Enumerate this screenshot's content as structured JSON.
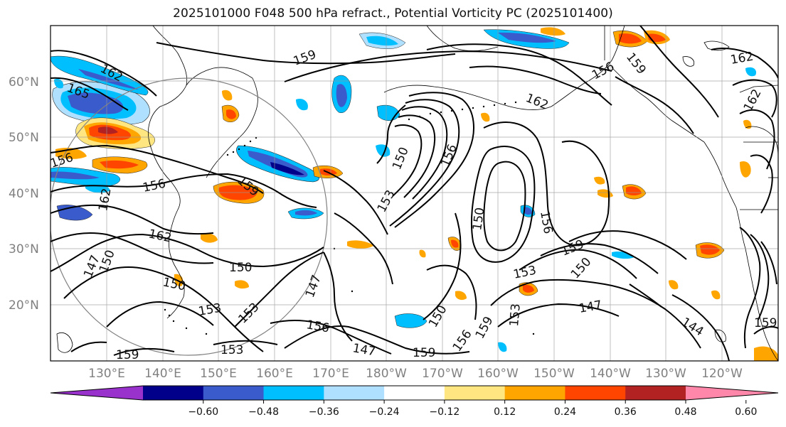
{
  "title": "2025101000 F048 500 hPa refract., Potential Vorticity PC (2025101400)",
  "lat_labels": [
    "60°N",
    "50°N",
    "40°N",
    "30°N",
    "20°N"
  ],
  "lon_labels": [
    "130°E",
    "140°E",
    "150°E",
    "160°E",
    "170°E",
    "180°W",
    "170°W",
    "160°W",
    "150°W",
    "140°W",
    "130°W",
    "120°W"
  ],
  "colorbar": {
    "ticks": [
      "−0.60",
      "−0.48",
      "−0.36",
      "−0.24",
      "−0.12",
      "0.12",
      "0.24",
      "0.36",
      "0.48",
      "0.60"
    ],
    "colors": [
      "#9932cc",
      "#00008b",
      "#3a5bcc",
      "#00bfff",
      "#b0e0ff",
      "#ffffff",
      "#ffe680",
      "#ffa500",
      "#ff4500",
      "#b22222",
      "#ff88aa"
    ]
  },
  "contour_labels": [
    {
      "text": "162"
    },
    {
      "text": "165"
    },
    {
      "text": "156"
    },
    {
      "text": "159"
    },
    {
      "text": "159"
    },
    {
      "text": "156"
    },
    {
      "text": "162"
    },
    {
      "text": "150"
    },
    {
      "text": "156"
    },
    {
      "text": "153"
    },
    {
      "text": "150"
    },
    {
      "text": "156"
    },
    {
      "text": "159"
    },
    {
      "text": "153"
    },
    {
      "text": "150"
    },
    {
      "text": "147"
    },
    {
      "text": "144"
    },
    {
      "text": "159"
    },
    {
      "text": "150"
    },
    {
      "text": "150"
    },
    {
      "text": "153"
    },
    {
      "text": "153"
    },
    {
      "text": "156"
    },
    {
      "text": "147"
    },
    {
      "text": "153"
    },
    {
      "text": "159"
    },
    {
      "text": "150"
    },
    {
      "text": "156"
    },
    {
      "text": "159"
    },
    {
      "text": "162"
    },
    {
      "text": "162"
    },
    {
      "text": "147"
    },
    {
      "text": "150"
    },
    {
      "text": "162"
    },
    {
      "text": "156"
    },
    {
      "text": "159"
    },
    {
      "text": "153"
    },
    {
      "text": "147"
    },
    {
      "text": "159"
    },
    {
      "text": "162"
    }
  ]
}
